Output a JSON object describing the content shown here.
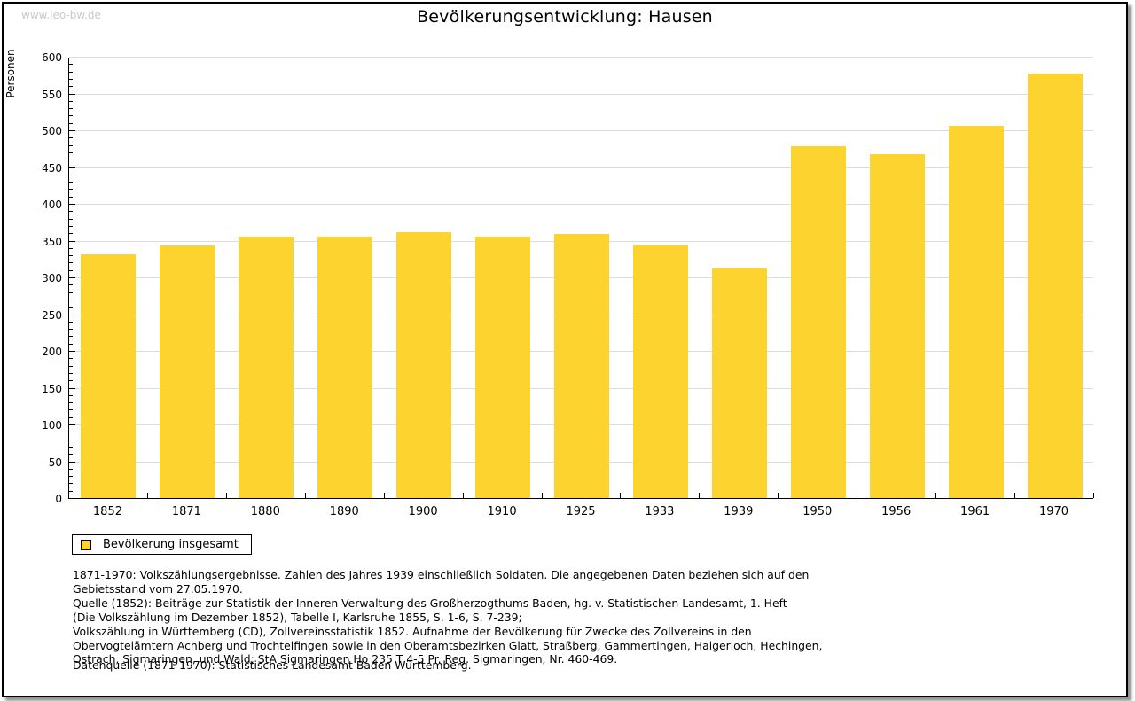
{
  "watermark": "www.leo-bw.de",
  "title": "Bevölkerungsentwicklung: Hausen",
  "colors": {
    "bar": "#fcd32f",
    "grid": "#dcdcdc",
    "axis": "#000000",
    "watermark": "#c9c9c9"
  },
  "legend": {
    "label": "Bevölkerung insgesamt"
  },
  "chart_data": {
    "type": "bar",
    "title": "Bevölkerungsentwicklung: Hausen",
    "xlabel": "",
    "ylabel": "Personen",
    "categories": [
      "1852",
      "1871",
      "1880",
      "1890",
      "1900",
      "1910",
      "1925",
      "1933",
      "1939",
      "1950",
      "1956",
      "1961",
      "1970"
    ],
    "series": [
      {
        "name": "Bevölkerung insgesamt",
        "values": [
          331,
          343,
          355,
          356,
          361,
          355,
          359,
          344,
          313,
          478,
          468,
          506,
          577
        ]
      }
    ],
    "ylim": [
      0,
      600
    ],
    "ytick_major": 50,
    "ytick_minor": 10,
    "grid": true,
    "legend_position": "bottom-left"
  },
  "footnotes": {
    "lines": [
      "1871-1970: Volkszählungsergebnisse. Zahlen des Jahres 1939 einschließlich Soldaten. Die angegebenen Daten beziehen sich auf den",
      "Gebietsstand vom 27.05.1970.",
      "Quelle (1852): Beiträge zur Statistik der Inneren Verwaltung des Großherzogthums Baden, hg. v. Statistischen Landesamt, 1. Heft",
      "(Die Volkszählung im Dezember 1852), Tabelle I, Karlsruhe 1855, S. 1-6, S. 7-239;",
      "Volkszählung in Württemberg (CD), Zollvereinsstatistik 1852. Aufnahme der Bevölkerung für Zwecke des Zollvereins in den",
      "Obervogteiämtern Achberg und Trochtelfingen sowie in den Oberamtsbezirken Glatt, Straßberg, Gammertingen, Haigerloch, Hechingen,",
      "Ostrach, Sigmaringen, und Wald; StA Sigmaringen Ho 235 T 4-5 Pr. Reg. Sigmaringen, Nr. 460-469."
    ],
    "datasource": "Datenquelle (1871-1970): Statistisches Landesamt Baden-Württemberg."
  }
}
